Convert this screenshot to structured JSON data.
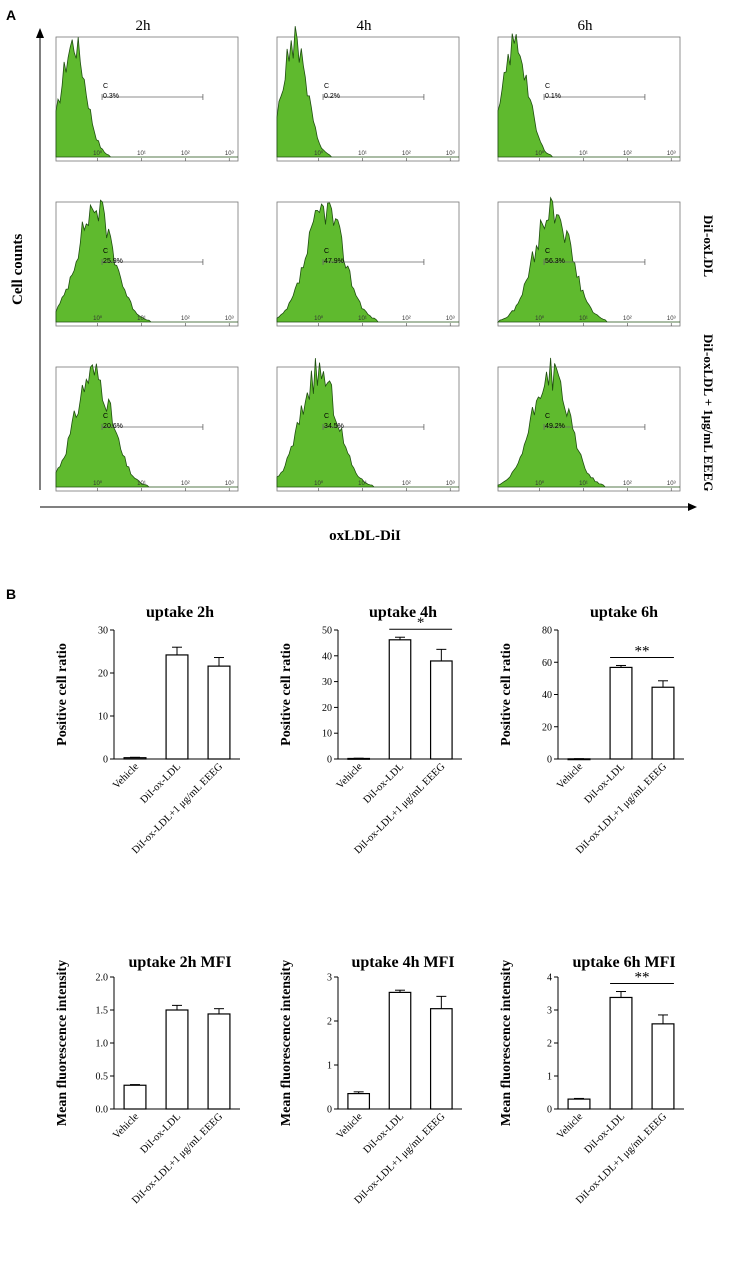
{
  "panels": {
    "a": "A",
    "b": "B"
  },
  "flow": {
    "time_labels": [
      "2h",
      "4h",
      "6h"
    ],
    "row_labels": [
      "DiI-oxLDL",
      "DiI-oxLDL + 1μg/mL EEEG"
    ],
    "y_label": "Cell counts",
    "x_label": "oxLDL-DiI",
    "gate_letter": "C",
    "log_ticks": [
      "10⁰",
      "10¹",
      "10²",
      "10³"
    ],
    "colors": {
      "fill": "#5fba2e",
      "outline": "#1f4f10"
    },
    "rows": [
      {
        "peaks_log": [
          -0.55,
          -0.55,
          -0.55
        ],
        "gates": [
          "0.3%",
          "0.2%",
          "0.1%"
        ]
      },
      {
        "peaks_log": [
          -0.05,
          0.15,
          0.3
        ],
        "gates": [
          "25.9%",
          "47.9%",
          "56.3%"
        ]
      },
      {
        "peaks_log": [
          -0.1,
          0.0,
          0.25
        ],
        "gates": [
          "20.6%",
          "34.5%",
          "49.2%"
        ]
      }
    ]
  },
  "chart_data": [
    {
      "type": "bar",
      "title": "uptake 2h",
      "ylabel": "Positive cell ratio",
      "ylim": [
        0,
        30
      ],
      "yticks": [
        "0",
        "10",
        "20",
        "30"
      ],
      "categories": [
        "Vehicle",
        "DiI-ox-LDL",
        "DiI-ox-LDL+1 μg/mL EEEG"
      ],
      "values": [
        0.3,
        24.2,
        21.6
      ],
      "errors": [
        0.1,
        1.8,
        2.0
      ],
      "sig": null
    },
    {
      "type": "bar",
      "title": "uptake 4h",
      "ylabel": "Positive cell ratio",
      "ylim": [
        0,
        50
      ],
      "yticks": [
        "0",
        "10",
        "20",
        "30",
        "40",
        "50"
      ],
      "categories": [
        "Vehicle",
        "DiI-ox-LDL",
        "DiI-ox-LDL+1 μg/mL EEEG"
      ],
      "values": [
        0.2,
        46.2,
        38.0
      ],
      "errors": [
        0.1,
        1.0,
        4.5
      ],
      "sig": "*"
    },
    {
      "type": "bar",
      "title": "uptake 6h",
      "ylabel": "Positive cell ratio",
      "ylim": [
        0,
        80
      ],
      "yticks": [
        "0",
        "20",
        "40",
        "60",
        "80"
      ],
      "categories": [
        "Vehicle",
        "DiI-ox-LDL",
        "DiI-ox-LDL+1 μg/mL EEEG"
      ],
      "values": [
        0.1,
        56.8,
        44.5
      ],
      "errors": [
        0.1,
        1.2,
        4.0
      ],
      "sig": "**"
    },
    {
      "type": "bar",
      "title": "uptake 2h MFI",
      "ylabel": "Mean fluorescence intensity",
      "ylim": [
        0,
        2.0
      ],
      "yticks": [
        "0.0",
        "0.5",
        "1.0",
        "1.5",
        "2.0"
      ],
      "categories": [
        "Vehicle",
        "DiI-ox-LDL",
        "DiI-ox-LDL+1 μg/mL EEEG"
      ],
      "values": [
        0.36,
        1.5,
        1.44
      ],
      "errors": [
        0.01,
        0.07,
        0.08
      ],
      "sig": null
    },
    {
      "type": "bar",
      "title": "uptake 4h MFI",
      "ylabel": "Mean fluorescence intensity",
      "ylim": [
        0,
        3
      ],
      "yticks": [
        "0",
        "1",
        "2",
        "3"
      ],
      "categories": [
        "Vehicle",
        "DiI-ox-LDL",
        "DiI-ox-LDL+1 μg/mL EEEG"
      ],
      "values": [
        0.35,
        2.65,
        2.28
      ],
      "errors": [
        0.04,
        0.05,
        0.28
      ],
      "sig": null
    },
    {
      "type": "bar",
      "title": "uptake 6h MFI",
      "ylabel": "Mean fluorescence intensity",
      "ylim": [
        0,
        4
      ],
      "yticks": [
        "0",
        "1",
        "2",
        "3",
        "4"
      ],
      "categories": [
        "Vehicle",
        "DiI-ox-LDL",
        "DiI-ox-LDL+1 μg/mL EEEG"
      ],
      "values": [
        0.3,
        3.38,
        2.58
      ],
      "errors": [
        0.02,
        0.18,
        0.27
      ],
      "sig": "**"
    }
  ]
}
